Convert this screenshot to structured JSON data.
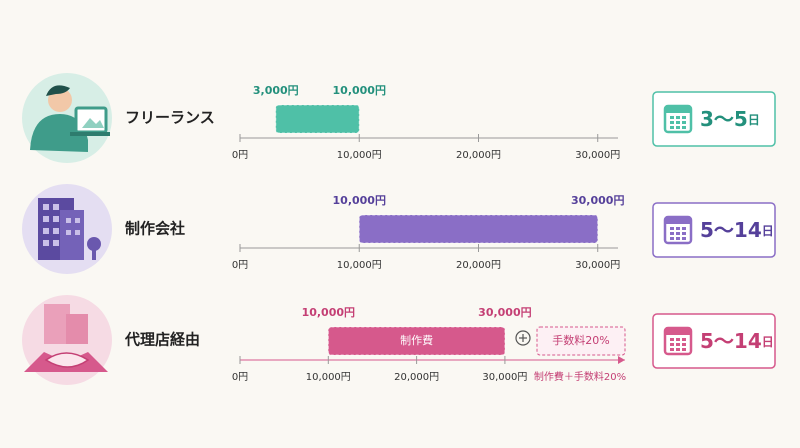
{
  "chart_data": [
    {
      "type": "range_bar",
      "category": "フリーランス",
      "values": [
        3000,
        10000
      ],
      "value_labels": [
        "3,000円",
        "10,000円"
      ],
      "color": "#4fc0a7",
      "text_color": "#23907c",
      "xlim": [
        0,
        31700
      ],
      "xticks": [
        {
          "value": 0,
          "label": "0円"
        },
        {
          "value": 10000,
          "label": "10,000円"
        },
        {
          "value": 20000,
          "label": "20,000円"
        },
        {
          "value": 30000,
          "label": "30,000円"
        }
      ],
      "duration": "3～5",
      "duration_unit": "日"
    },
    {
      "type": "range_bar",
      "category": "制作会社",
      "values": [
        10000,
        30000
      ],
      "value_labels": [
        "10,000円",
        "30,000円"
      ],
      "color": "#8a6ec6",
      "text_color": "#55409a",
      "xlim": [
        0,
        31700
      ],
      "xticks": [
        {
          "value": 0,
          "label": "0円"
        },
        {
          "value": 10000,
          "label": "10,000円"
        },
        {
          "value": 20000,
          "label": "20,000円"
        },
        {
          "value": 30000,
          "label": "30,000円"
        }
      ],
      "duration": "5～14",
      "duration_unit": "日"
    },
    {
      "type": "range_bar",
      "category": "代理店経由",
      "values": [
        10000,
        30000
      ],
      "value_labels": [
        "10,000円",
        "30,000円"
      ],
      "color": "#d6598c",
      "text_color": "#c43f74",
      "xlim": [
        0,
        43600
      ],
      "xticks": [
        {
          "value": 0,
          "label": "0円"
        },
        {
          "value": 10000,
          "label": "10,000円"
        },
        {
          "value": 20000,
          "label": "20,000円"
        },
        {
          "value": 30000,
          "label": "30,000円"
        }
      ],
      "bar_label": "制作費",
      "fee_label": "手数料20%",
      "axis_note": "制作費＋手数料20%",
      "duration": "5～14",
      "duration_unit": "日"
    }
  ]
}
